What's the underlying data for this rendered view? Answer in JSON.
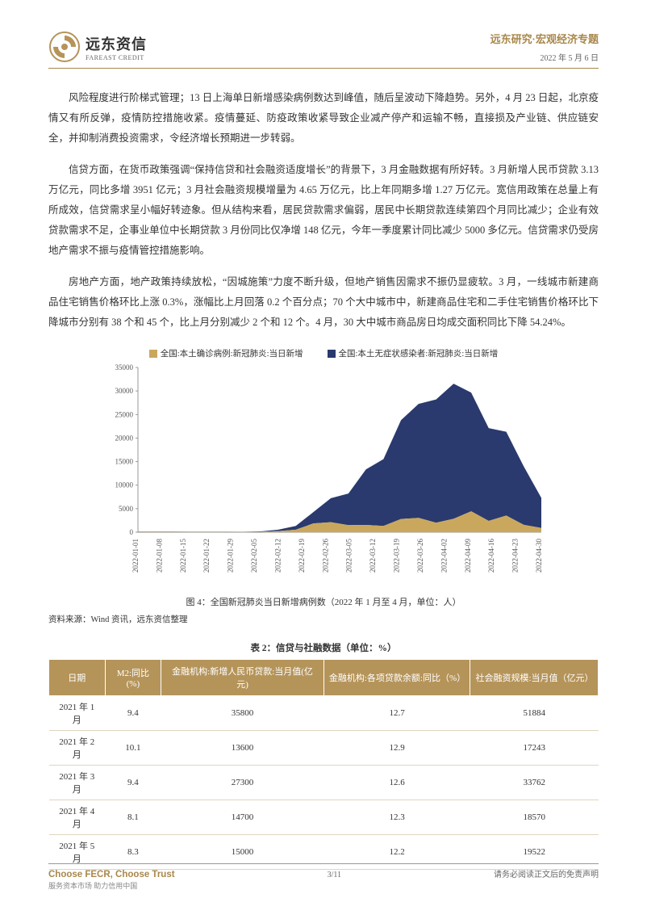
{
  "header": {
    "logo_cn": "远东资信",
    "logo_en": "FAREAST CREDIT",
    "category": "远东研究·宏观经济专题",
    "date": "2022 年 5 月 6 日",
    "logo_color": "#b5945a"
  },
  "paragraphs": {
    "p1": "风险程度进行阶梯式管理；13 日上海单日新增感染病例数达到峰值，随后呈波动下降趋势。另外，4 月 23 日起，北京疫情又有所反弹，疫情防控措施收紧。疫情蔓延、防疫政策收紧导致企业减产停产和运输不畅，直接损及产业链、供应链安全，并抑制消费投资需求，令经济增长预期进一步转弱。",
    "p2": "信贷方面，在货币政策强调“保持信贷和社会融资适度增长”的背景下，3 月金融数据有所好转。3 月新增人民币贷款 3.13 万亿元，同比多增 3951 亿元；3 月社会融资规模增量为 4.65 万亿元，比上年同期多增 1.27 万亿元。宽信用政策在总量上有所成效，信贷需求呈小幅好转迹象。但从结构来看，居民贷款需求偏弱，居民中长期贷款连续第四个月同比减少；企业有效贷款需求不足，企事业单位中长期贷款 3 月份同比仅净增 148 亿元，今年一季度累计同比减少 5000 多亿元。信贷需求仍受房地产需求不振与疫情管控措施影响。",
    "p3": "房地产方面，地产政策持续放松，“因城施策”力度不断升级，但地产销售因需求不振仍显疲软。3 月，一线城市新建商品住宅销售价格环比上涨 0.3%，涨幅比上月回落 0.2 个百分点；70 个大中城市中，新建商品住宅和二手住宅销售价格环比下降城市分别有 38 个和 45 个，比上月分别减少 2 个和 12 个。4 月，30 大中城市商品房日均成交面积同比下降 54.24%。"
  },
  "chart": {
    "legend": [
      {
        "label": "全国:本土确诊病例:新冠肺炎:当日新增",
        "color": "#c9a85e"
      },
      {
        "label": "全国:本土无症状感染者:新冠肺炎:当日新增",
        "color": "#2a3a6e"
      }
    ],
    "x_labels": [
      "2022-01-01",
      "2022-01-08",
      "2022-01-15",
      "2022-01-22",
      "2022-01-29",
      "2022-02-05",
      "2022-02-12",
      "2022-02-19",
      "2022-02-26",
      "2022-03-05",
      "2022-03-12",
      "2022-03-19",
      "2022-03-26",
      "2022-04-02",
      "2022-04-09",
      "2022-04-16",
      "2022-04-23",
      "2022-04-30"
    ],
    "y_ticks": [
      0,
      5000,
      10000,
      15000,
      20000,
      25000,
      30000,
      35000
    ],
    "ylim": [
      0,
      35000
    ],
    "series": {
      "confirmed": [
        100,
        130,
        90,
        60,
        60,
        60,
        50,
        90,
        230,
        530,
        1860,
        2130,
        1510,
        1540,
        1320,
        2800,
        3050,
        2010,
        2850,
        4450,
        2410,
        3530,
        1560,
        900
      ],
      "asymptomatic": [
        40,
        40,
        40,
        40,
        40,
        40,
        40,
        80,
        310,
        810,
        2400,
        5100,
        6700,
        11800,
        14200,
        21000,
        24200,
        26200,
        28700,
        25200,
        19700,
        17800,
        12400,
        6400
      ]
    },
    "n_points": 24,
    "background_color": "#ffffff",
    "axis_color": "#999999",
    "title_fontsize": 11,
    "tick_fontsize": 9,
    "caption": "图 4：全国新冠肺炎当日新增病例数（2022 年 1 月至 4 月，单位：人）",
    "source": "资料来源：Wind 资讯，远东资信整理"
  },
  "table": {
    "title": "表 2：信贷与社融数据（单位：%）",
    "header_bg": "#b5945a",
    "header_fg": "#ffffff",
    "row_border": "#e0d6c0",
    "columns": [
      "日期",
      "M2:同比(%)",
      "金融机构:新增人民币贷款:当月值(亿元)",
      "金融机构:各项贷款余额:同比（%）",
      "社会融资规模:当月值（亿元）"
    ],
    "rows": [
      [
        "2021 年 1 月",
        "9.4",
        "35800",
        "12.7",
        "51884"
      ],
      [
        "2021 年 2 月",
        "10.1",
        "13600",
        "12.9",
        "17243"
      ],
      [
        "2021 年 3 月",
        "9.4",
        "27300",
        "12.6",
        "33762"
      ],
      [
        "2021 年 4 月",
        "8.1",
        "14700",
        "12.3",
        "18570"
      ],
      [
        "2021 年 5 月",
        "8.3",
        "15000",
        "12.2",
        "19522"
      ]
    ]
  },
  "footer": {
    "slogan_en": "Choose FECR, Choose Trust",
    "slogan_cn": "服务资本市场  助力信用中国",
    "page": "3",
    "total": "/11",
    "disclaimer": "请务必阅读正文后的免责声明"
  }
}
